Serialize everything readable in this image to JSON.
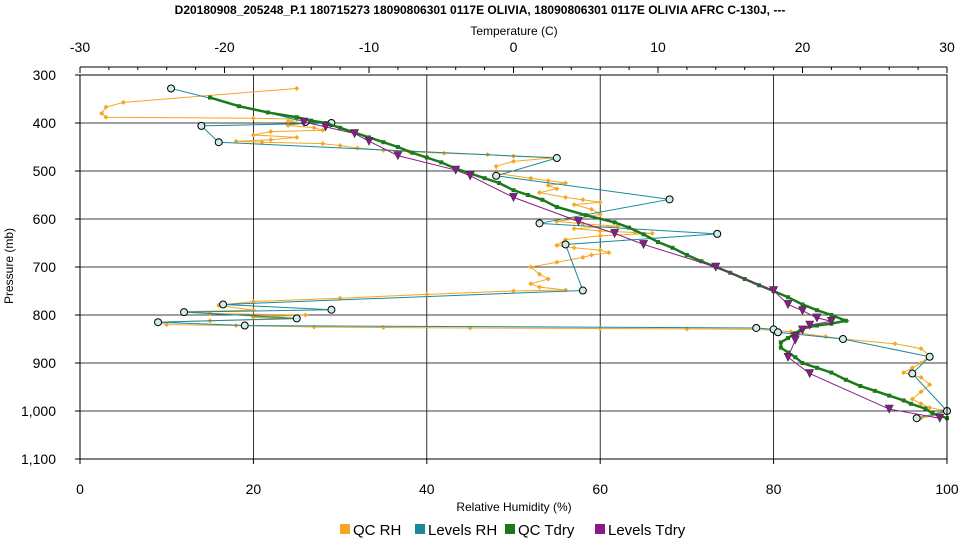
{
  "chart_data": {
    "type": "scatter",
    "title": "D20180908_205248_P.1 180715273 18090806301 0117E OLIVIA, 18090806301 0117E OLIVIA AFRC C-130J, ---",
    "x_top_label": "Temperature (C)",
    "x_top_lim": [
      -30,
      30
    ],
    "x_top_ticks": [
      -30,
      -20,
      -10,
      0,
      10,
      20,
      30
    ],
    "x_top_tick_labels": [
      "-30",
      "-20",
      "-10",
      "0",
      "10",
      "20",
      "30"
    ],
    "x_bottom_label": "Relative Humidity (%)",
    "x_bottom_lim": [
      0,
      100
    ],
    "x_bottom_ticks": [
      0,
      20,
      40,
      60,
      80,
      100
    ],
    "x_bottom_tick_labels": [
      "0",
      "20",
      "40",
      "60",
      "80",
      "100"
    ],
    "ylabel": "Pressure (mb)",
    "ylim": [
      300,
      1100
    ],
    "y_inverted": true,
    "y_ticks": [
      300,
      400,
      500,
      600,
      700,
      800,
      900,
      1000,
      1100
    ],
    "y_tick_labels": [
      "300",
      "400",
      "500",
      "600",
      "700",
      "800",
      "900",
      "1,000",
      "1,100"
    ],
    "grid": true,
    "legend_position": "bottom",
    "series": [
      {
        "name": "QC RH",
        "axis": "rh",
        "color": "#f5a623",
        "marker": "diamond",
        "points": [
          [
            25,
            328
          ],
          [
            5,
            357
          ],
          [
            3,
            367
          ],
          [
            2.5,
            380
          ],
          [
            3,
            388
          ],
          [
            20,
            390
          ],
          [
            25,
            392
          ],
          [
            24,
            397
          ],
          [
            26,
            400
          ],
          [
            24,
            405
          ],
          [
            27,
            410
          ],
          [
            28,
            415
          ],
          [
            22,
            418
          ],
          [
            20,
            425
          ],
          [
            25,
            430
          ],
          [
            22,
            435
          ],
          [
            18,
            438
          ],
          [
            21,
            440
          ],
          [
            28,
            443
          ],
          [
            30,
            447
          ],
          [
            32,
            452
          ],
          [
            35,
            457
          ],
          [
            38,
            460
          ],
          [
            42,
            463
          ],
          [
            47,
            466
          ],
          [
            50,
            469
          ],
          [
            55,
            472
          ],
          [
            50,
            480
          ],
          [
            48,
            490
          ],
          [
            48,
            505
          ],
          [
            52,
            515
          ],
          [
            54,
            520
          ],
          [
            56,
            525
          ],
          [
            54,
            530
          ],
          [
            55,
            537
          ],
          [
            53,
            545
          ],
          [
            56,
            555
          ],
          [
            58,
            560
          ],
          [
            60,
            565
          ],
          [
            57,
            570
          ],
          [
            59,
            580
          ],
          [
            60,
            590
          ],
          [
            57,
            600
          ],
          [
            55,
            605
          ],
          [
            58,
            610
          ],
          [
            62,
            615
          ],
          [
            57,
            620
          ],
          [
            60,
            625
          ],
          [
            64,
            628
          ],
          [
            66,
            630
          ],
          [
            60,
            635
          ],
          [
            56,
            643
          ],
          [
            55,
            655
          ],
          [
            57,
            660
          ],
          [
            60,
            665
          ],
          [
            61,
            670
          ],
          [
            59,
            675
          ],
          [
            58,
            680
          ],
          [
            55,
            690
          ],
          [
            52,
            700
          ],
          [
            53,
            715
          ],
          [
            54,
            725
          ],
          [
            52,
            735
          ],
          [
            53,
            742
          ],
          [
            56,
            748
          ],
          [
            50,
            750
          ],
          [
            40,
            757
          ],
          [
            30,
            765
          ],
          [
            20,
            772
          ],
          [
            16,
            780
          ],
          [
            20,
            790
          ],
          [
            12,
            793
          ],
          [
            15,
            797
          ],
          [
            26,
            800
          ],
          [
            20,
            805
          ],
          [
            25,
            808
          ],
          [
            15,
            812
          ],
          [
            9,
            815
          ],
          [
            10,
            820
          ],
          [
            18,
            822
          ],
          [
            27,
            825
          ],
          [
            35,
            826
          ],
          [
            45,
            827
          ],
          [
            60,
            828
          ],
          [
            70,
            829
          ],
          [
            78,
            830
          ],
          [
            82,
            835
          ],
          [
            86,
            845
          ],
          [
            88,
            850
          ],
          [
            94,
            860
          ],
          [
            97,
            870
          ],
          [
            98,
            885
          ],
          [
            97,
            900
          ],
          [
            96,
            910
          ],
          [
            95,
            920
          ],
          [
            97,
            930
          ],
          [
            98,
            945
          ],
          [
            97,
            960
          ],
          [
            96,
            975
          ],
          [
            97,
            985
          ],
          [
            98,
            993
          ],
          [
            100,
            1000
          ],
          [
            99,
            1007
          ],
          [
            97,
            1015
          ]
        ]
      },
      {
        "name": "Levels RH",
        "axis": "rh",
        "color": "#1a8a9a",
        "marker": "circle",
        "points": [
          [
            10.5,
            328
          ],
          [
            26,
            398
          ],
          [
            29,
            400
          ],
          [
            14,
            406
          ],
          [
            16,
            440
          ],
          [
            55,
            473
          ],
          [
            48,
            510
          ],
          [
            68,
            559
          ],
          [
            53,
            609
          ],
          [
            73.5,
            631
          ],
          [
            56,
            653
          ],
          [
            58,
            749
          ],
          [
            16.5,
            778
          ],
          [
            29,
            789
          ],
          [
            12,
            794
          ],
          [
            25,
            807
          ],
          [
            9,
            815
          ],
          [
            19,
            822
          ],
          [
            78,
            827
          ],
          [
            80,
            830
          ],
          [
            80.5,
            836
          ],
          [
            88,
            850
          ],
          [
            98,
            887
          ],
          [
            96,
            922
          ],
          [
            100,
            1000
          ],
          [
            96.5,
            1015
          ]
        ]
      },
      {
        "name": "QC Tdry",
        "axis": "temp",
        "color": "#1a7a1a",
        "marker": "square",
        "points": [
          [
            -21,
            347
          ],
          [
            -19,
            365
          ],
          [
            -17,
            378
          ],
          [
            -15,
            388
          ],
          [
            -14,
            395
          ],
          [
            -13,
            400
          ],
          [
            -12,
            410
          ],
          [
            -11,
            420
          ],
          [
            -10,
            430
          ],
          [
            -9,
            440
          ],
          [
            -8,
            450
          ],
          [
            -7,
            462
          ],
          [
            -6,
            472
          ],
          [
            -5,
            482
          ],
          [
            -4,
            495
          ],
          [
            -3,
            505
          ],
          [
            -2,
            515
          ],
          [
            -1,
            525
          ],
          [
            0,
            540
          ],
          [
            1,
            550
          ],
          [
            2,
            560
          ],
          [
            3,
            575
          ],
          [
            5,
            592
          ],
          [
            7,
            607
          ],
          [
            8,
            618
          ],
          [
            9,
            632
          ],
          [
            10,
            648
          ],
          [
            11,
            660
          ],
          [
            12,
            675
          ],
          [
            13,
            688
          ],
          [
            14,
            700
          ],
          [
            15,
            712
          ],
          [
            16,
            725
          ],
          [
            17,
            738
          ],
          [
            18,
            750
          ],
          [
            19,
            763
          ],
          [
            20,
            778
          ],
          [
            21,
            790
          ],
          [
            22,
            800
          ],
          [
            23,
            812
          ],
          [
            22,
            818
          ],
          [
            21,
            822
          ],
          [
            20,
            828
          ],
          [
            19.5,
            838
          ],
          [
            19,
            848
          ],
          [
            18.5,
            857
          ],
          [
            18.5,
            868
          ],
          [
            19,
            878
          ],
          [
            19.5,
            888
          ],
          [
            20,
            900
          ],
          [
            21,
            910
          ],
          [
            22,
            920
          ],
          [
            23,
            935
          ],
          [
            24,
            948
          ],
          [
            25,
            958
          ],
          [
            26,
            968
          ],
          [
            27,
            978
          ],
          [
            27.5,
            985
          ],
          [
            28.5,
            995
          ],
          [
            29,
            1005
          ],
          [
            30,
            1015
          ]
        ]
      },
      {
        "name": "Levels Tdry",
        "axis": "temp",
        "color": "#8a1a8a",
        "marker": "triangle",
        "points": [
          [
            -14.5,
            398
          ],
          [
            -13,
            408
          ],
          [
            -11,
            422
          ],
          [
            -10,
            438
          ],
          [
            -8,
            468
          ],
          [
            -4,
            498
          ],
          [
            -3,
            510
          ],
          [
            0,
            555
          ],
          [
            4.5,
            605
          ],
          [
            7,
            630
          ],
          [
            9,
            653
          ],
          [
            14,
            700
          ],
          [
            18,
            749
          ],
          [
            19,
            778
          ],
          [
            20,
            791
          ],
          [
            21,
            806
          ],
          [
            22,
            813
          ],
          [
            20.5,
            821
          ],
          [
            20,
            831
          ],
          [
            19.5,
            845
          ],
          [
            19.5,
            852
          ],
          [
            19,
            888
          ],
          [
            20.5,
            922
          ],
          [
            26,
            996
          ],
          [
            29.5,
            1015
          ]
        ]
      }
    ]
  }
}
